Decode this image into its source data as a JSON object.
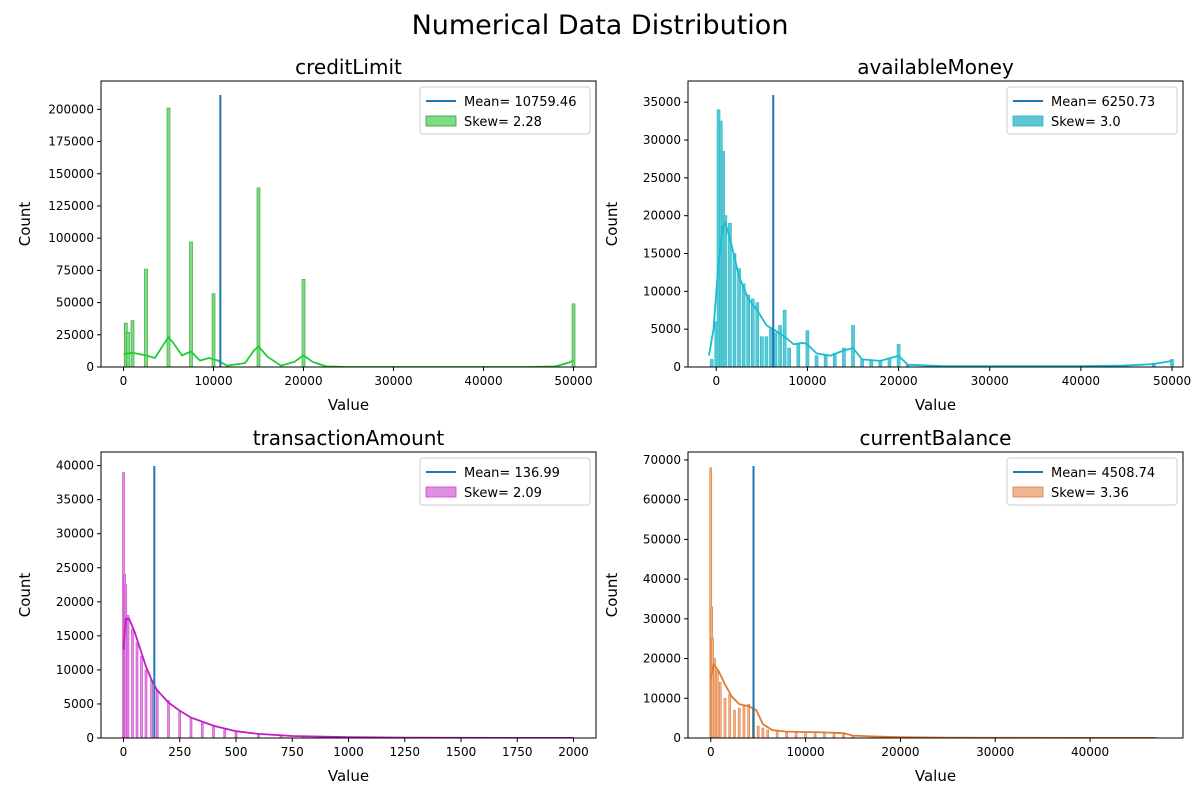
{
  "suptitle": "Numerical Data Distribution",
  "chart_data": [
    {
      "type": "histogram",
      "title": "creditLimit",
      "xlabel": "Value",
      "ylabel": "Count",
      "xlim": [
        -2500,
        52500
      ],
      "ylim": [
        0,
        222000
      ],
      "xticks": [
        0,
        10000,
        20000,
        30000,
        40000,
        50000
      ],
      "yticks": [
        0,
        25000,
        50000,
        75000,
        100000,
        125000,
        150000,
        175000,
        200000
      ],
      "color": "#2ca02c",
      "bar_fill": "#7fdc84",
      "kde_color": "#1fcf2e",
      "mean": 10759.46,
      "mean_label": "Mean= 10759.46",
      "skew_label": "Skew= 2.28",
      "legend_loc": "upper right",
      "bars": [
        [
          250,
          34000
        ],
        [
          500,
          27000
        ],
        [
          1000,
          36000
        ],
        [
          2500,
          76000
        ],
        [
          5000,
          201000
        ],
        [
          7500,
          97000
        ],
        [
          10000,
          57000
        ],
        [
          15000,
          139000
        ],
        [
          20000,
          68000
        ],
        [
          50000,
          49000
        ]
      ],
      "kde": [
        [
          0,
          10000
        ],
        [
          1000,
          11000
        ],
        [
          2500,
          9000
        ],
        [
          3500,
          7000
        ],
        [
          4500,
          18000
        ],
        [
          5000,
          23000
        ],
        [
          5500,
          19000
        ],
        [
          6500,
          9000
        ],
        [
          7500,
          12000
        ],
        [
          8500,
          5000
        ],
        [
          9500,
          7000
        ],
        [
          10500,
          5000
        ],
        [
          11500,
          1000
        ],
        [
          13500,
          3000
        ],
        [
          14500,
          13000
        ],
        [
          15000,
          16000
        ],
        [
          16000,
          8000
        ],
        [
          17500,
          1000
        ],
        [
          19000,
          4000
        ],
        [
          20000,
          9000
        ],
        [
          21000,
          4000
        ],
        [
          22500,
          500
        ],
        [
          25000,
          0
        ],
        [
          45000,
          0
        ],
        [
          48000,
          500
        ],
        [
          49500,
          3500
        ],
        [
          50000,
          5000
        ]
      ]
    },
    {
      "type": "histogram",
      "title": "availableMoney",
      "xlabel": "Value",
      "ylabel": "Count",
      "xlim": [
        -3100,
        51200
      ],
      "ylim": [
        0,
        37800
      ],
      "xticks": [
        0,
        10000,
        20000,
        30000,
        40000,
        50000
      ],
      "yticks": [
        0,
        5000,
        10000,
        15000,
        20000,
        25000,
        30000,
        35000
      ],
      "color": "#17becf",
      "bar_fill": "#5fc6d2",
      "kde_color": "#17becf",
      "mean": 6250.73,
      "mean_label": "Mean= 6250.73",
      "skew_label": "Skew= 3.0",
      "legend_loc": "upper right",
      "bars": [
        [
          -500,
          1000
        ],
        [
          0,
          6000
        ],
        [
          250,
          34000
        ],
        [
          500,
          32500
        ],
        [
          750,
          28500
        ],
        [
          1000,
          20000
        ],
        [
          1500,
          19000
        ],
        [
          2000,
          15000
        ],
        [
          2500,
          13000
        ],
        [
          3000,
          11000
        ],
        [
          3500,
          9500
        ],
        [
          4000,
          9000
        ],
        [
          4500,
          8500
        ],
        [
          5000,
          4000
        ],
        [
          5500,
          4000
        ],
        [
          6000,
          5000
        ],
        [
          6500,
          4500
        ],
        [
          7000,
          5500
        ],
        [
          7500,
          7500
        ],
        [
          8000,
          2500
        ],
        [
          9000,
          3000
        ],
        [
          10000,
          4800
        ],
        [
          11000,
          1500
        ],
        [
          12000,
          1500
        ],
        [
          13000,
          1800
        ],
        [
          14000,
          2500
        ],
        [
          15000,
          5500
        ],
        [
          16000,
          1000
        ],
        [
          17000,
          800
        ],
        [
          18000,
          800
        ],
        [
          19000,
          1200
        ],
        [
          20000,
          3000
        ],
        [
          21000,
          200
        ],
        [
          25000,
          150
        ],
        [
          30000,
          150
        ],
        [
          35000,
          150
        ],
        [
          40000,
          200
        ],
        [
          45000,
          300
        ],
        [
          48000,
          500
        ],
        [
          50000,
          1000
        ]
      ],
      "kde": [
        [
          -800,
          1500
        ],
        [
          -300,
          5000
        ],
        [
          200,
          13000
        ],
        [
          700,
          18500
        ],
        [
          1000,
          19000
        ],
        [
          1500,
          17000
        ],
        [
          2500,
          12000
        ],
        [
          3500,
          9000
        ],
        [
          4500,
          7500
        ],
        [
          5500,
          5500
        ],
        [
          6500,
          4800
        ],
        [
          7500,
          4000
        ],
        [
          8500,
          3000
        ],
        [
          9500,
          3200
        ],
        [
          10000,
          3000
        ],
        [
          11000,
          1800
        ],
        [
          12500,
          1500
        ],
        [
          14000,
          2200
        ],
        [
          15000,
          2500
        ],
        [
          16000,
          1000
        ],
        [
          18000,
          800
        ],
        [
          20000,
          1500
        ],
        [
          21000,
          300
        ],
        [
          25000,
          100
        ],
        [
          40000,
          100
        ],
        [
          45000,
          200
        ],
        [
          48000,
          400
        ],
        [
          50000,
          800
        ]
      ]
    },
    {
      "type": "histogram",
      "title": "transactionAmount",
      "xlabel": "Value",
      "ylabel": "Count",
      "xlim": [
        -100,
        2100
      ],
      "ylim": [
        0,
        42000
      ],
      "xticks": [
        0,
        250,
        500,
        750,
        1000,
        1250,
        1500,
        1750,
        2000
      ],
      "yticks": [
        0,
        5000,
        10000,
        15000,
        20000,
        25000,
        30000,
        35000,
        40000
      ],
      "color": "#c844c8",
      "bar_fill": "#e08fe0",
      "kde_color": "#c21cc2",
      "mean": 136.99,
      "mean_label": "Mean= 136.99",
      "skew_label": "Skew= 2.09",
      "legend_loc": "upper right",
      "bars": [
        [
          0,
          39000
        ],
        [
          5,
          24000
        ],
        [
          10,
          22500
        ],
        [
          20,
          18000
        ],
        [
          40,
          16000
        ],
        [
          60,
          14000
        ],
        [
          80,
          12000
        ],
        [
          100,
          10000
        ],
        [
          125,
          8500
        ],
        [
          150,
          7000
        ],
        [
          200,
          5500
        ],
        [
          250,
          4000
        ],
        [
          300,
          3000
        ],
        [
          350,
          2200
        ],
        [
          400,
          1600
        ],
        [
          450,
          1200
        ],
        [
          500,
          900
        ],
        [
          600,
          600
        ],
        [
          700,
          400
        ],
        [
          800,
          250
        ],
        [
          900,
          180
        ],
        [
          1000,
          120
        ],
        [
          1250,
          80
        ],
        [
          1500,
          50
        ],
        [
          1750,
          30
        ],
        [
          2000,
          20
        ]
      ],
      "kde": [
        [
          0,
          13000
        ],
        [
          10,
          17500
        ],
        [
          25,
          17500
        ],
        [
          50,
          15500
        ],
        [
          75,
          13000
        ],
        [
          100,
          10500
        ],
        [
          125,
          8500
        ],
        [
          150,
          7000
        ],
        [
          200,
          5200
        ],
        [
          250,
          4000
        ],
        [
          300,
          3000
        ],
        [
          400,
          1800
        ],
        [
          500,
          1000
        ],
        [
          600,
          600
        ],
        [
          750,
          300
        ],
        [
          1000,
          120
        ],
        [
          1250,
          60
        ],
        [
          1500,
          30
        ],
        [
          1750,
          15
        ],
        [
          2000,
          10
        ]
      ]
    },
    {
      "type": "histogram",
      "title": "currentBalance",
      "xlabel": "Value",
      "ylabel": "Count",
      "xlim": [
        -2400,
        49800
      ],
      "ylim": [
        0,
        72000
      ],
      "xticks": [
        0,
        10000,
        20000,
        30000,
        40000
      ],
      "yticks": [
        0,
        10000,
        20000,
        30000,
        40000,
        50000,
        60000,
        70000
      ],
      "color": "#e07b39",
      "bar_fill": "#f0b48e",
      "kde_color": "#dd7a33",
      "mean": 4508.74,
      "mean_label": "Mean= 4508.74",
      "skew_label": "Skew= 3.36",
      "legend_loc": "upper right",
      "bars": [
        [
          0,
          68000
        ],
        [
          100,
          33000
        ],
        [
          200,
          25000
        ],
        [
          400,
          20000
        ],
        [
          700,
          17000
        ],
        [
          1000,
          14000
        ],
        [
          1500,
          10000
        ],
        [
          2000,
          11000
        ],
        [
          2500,
          7000
        ],
        [
          3000,
          7500
        ],
        [
          3500,
          8000
        ],
        [
          4000,
          8500
        ],
        [
          4500,
          7500
        ],
        [
          5000,
          3000
        ],
        [
          5500,
          2500
        ],
        [
          6000,
          2000
        ],
        [
          7000,
          2000
        ],
        [
          8000,
          1600
        ],
        [
          9000,
          1500
        ],
        [
          10000,
          1400
        ],
        [
          11000,
          1400
        ],
        [
          12000,
          1300
        ],
        [
          13000,
          1200
        ],
        [
          14000,
          900
        ],
        [
          15000,
          500
        ],
        [
          17000,
          300
        ],
        [
          20000,
          200
        ],
        [
          25000,
          100
        ],
        [
          30000,
          60
        ],
        [
          40000,
          30
        ],
        [
          47000,
          20
        ]
      ],
      "kde": [
        [
          0,
          15000
        ],
        [
          300,
          18500
        ],
        [
          800,
          17000
        ],
        [
          1500,
          13500
        ],
        [
          2200,
          10500
        ],
        [
          3000,
          8500
        ],
        [
          4000,
          8000
        ],
        [
          4800,
          7000
        ],
        [
          5500,
          3500
        ],
        [
          6500,
          2000
        ],
        [
          8000,
          1600
        ],
        [
          10000,
          1500
        ],
        [
          12000,
          1400
        ],
        [
          14000,
          1200
        ],
        [
          15000,
          600
        ],
        [
          17000,
          400
        ],
        [
          20000,
          200
        ],
        [
          25000,
          100
        ],
        [
          30000,
          60
        ],
        [
          40000,
          30
        ],
        [
          47000,
          20
        ]
      ]
    }
  ]
}
